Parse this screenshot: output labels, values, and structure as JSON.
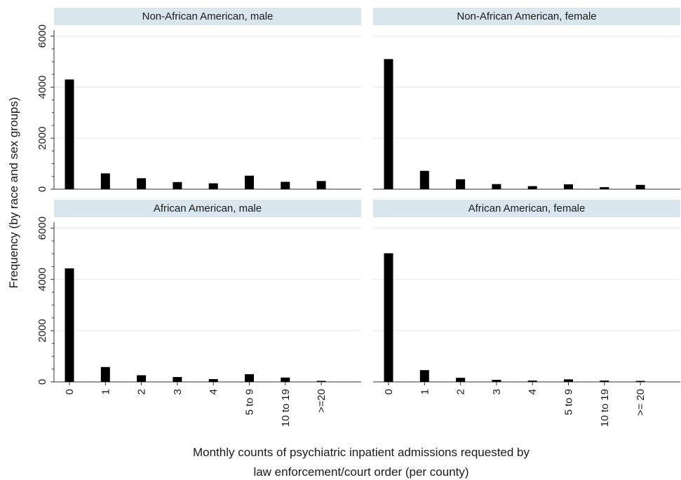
{
  "chart_data": {
    "type": "bar",
    "ylabel": "Frequency (by race and sex groups)",
    "xlabel_lines": [
      "Monthly counts of psychiatric inpatient admissions requested by",
      "law enforcement/court order (per county)"
    ],
    "ylim": [
      0,
      6400
    ],
    "yticks": [
      0,
      2000,
      4000,
      6000
    ],
    "grid": true,
    "colors": {
      "bar": "#000000",
      "strip": "#d9e6ee",
      "grid": "#e6e6e6",
      "axis": "#333333"
    },
    "panels": [
      {
        "title": "Non-African American, male",
        "categories": [
          "0",
          "1",
          "2",
          "3",
          "4",
          "5 to 9",
          "10 to 19",
          ">=20"
        ],
        "values": [
          4300,
          620,
          430,
          280,
          230,
          530,
          290,
          320
        ]
      },
      {
        "title": "Non-African American, female",
        "categories": [
          "0",
          "1",
          "2",
          "3",
          "4",
          "5 to 9",
          "10 to 19",
          ">= 20"
        ],
        "values": [
          5100,
          720,
          390,
          200,
          120,
          190,
          80,
          170
        ]
      },
      {
        "title": "African American, male",
        "categories": [
          "0",
          "1",
          "2",
          "3",
          "4",
          "5 to 9",
          "10 to 19",
          ">=20"
        ],
        "values": [
          4430,
          580,
          260,
          190,
          110,
          300,
          170,
          40
        ]
      },
      {
        "title": "African American, female",
        "categories": [
          "0",
          "1",
          "2",
          "3",
          "4",
          "5 to 9",
          "10 to 19",
          ">= 20"
        ],
        "values": [
          5020,
          460,
          160,
          80,
          50,
          100,
          50,
          40
        ]
      }
    ]
  }
}
